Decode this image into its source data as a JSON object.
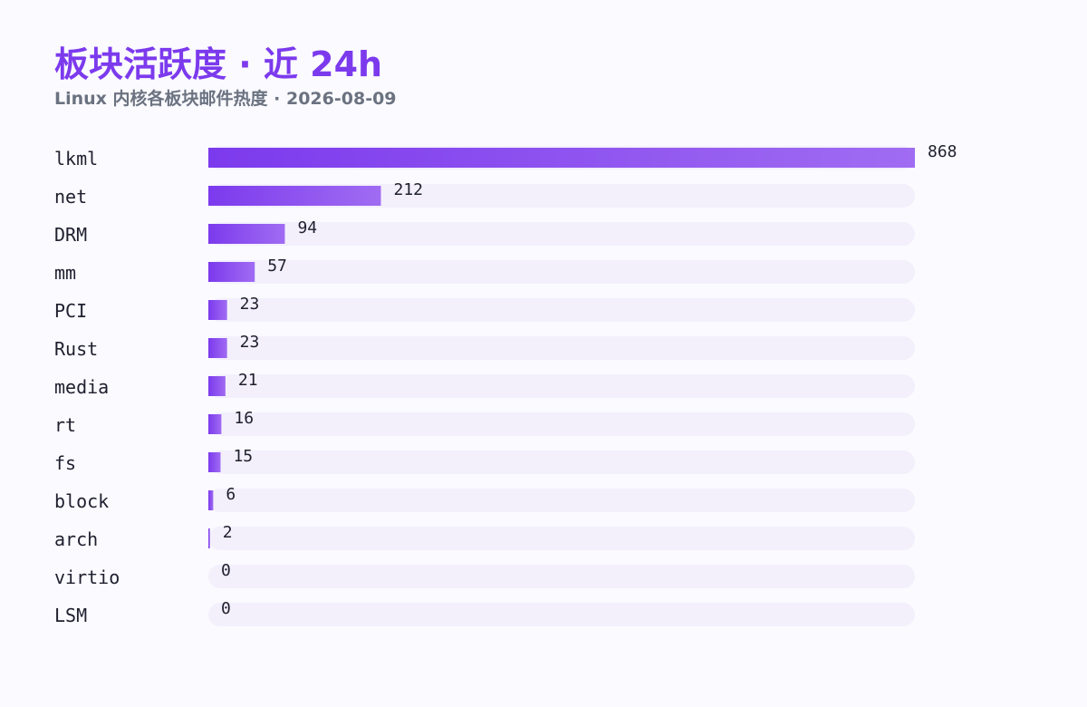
{
  "header": {
    "title": "板块活跃度 · 近 24h",
    "subtitle": "Linux 内核各板块邮件热度 · 2026-08-09"
  },
  "colors": {
    "accent": "#7c3aed",
    "accent_light": "#a06cf2",
    "track": "#f3f0fc",
    "subtitle": "#6b7280",
    "text": "#1f1f2e",
    "background": "#fafaff"
  },
  "chart_data": {
    "type": "bar",
    "orientation": "horizontal",
    "title": "板块活跃度 · 近 24h",
    "subtitle": "Linux 内核各板块邮件热度 · 2026-08-09",
    "xlabel": "",
    "ylabel": "",
    "categories": [
      "lkml",
      "net",
      "DRM",
      "mm",
      "PCI",
      "Rust",
      "media",
      "rt",
      "fs",
      "block",
      "arch",
      "virtio",
      "LSM"
    ],
    "values": [
      868,
      212,
      94,
      57,
      23,
      23,
      21,
      16,
      15,
      6,
      2,
      0,
      0
    ],
    "xlim": [
      0,
      868
    ],
    "grid": false,
    "legend": "none"
  }
}
